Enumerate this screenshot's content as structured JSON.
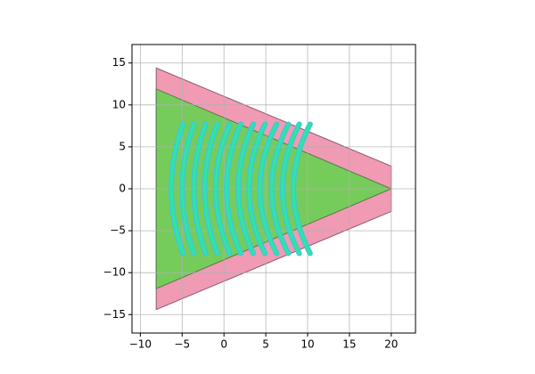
{
  "chart_data": {
    "type": "shapes",
    "xlim": [
      -11,
      22.9
    ],
    "ylim": [
      -17.2,
      17.2
    ],
    "xticks": [
      {
        "value": -10,
        "label": "−10"
      },
      {
        "value": -5,
        "label": "−5"
      },
      0,
      5,
      10,
      15,
      20
    ],
    "yticks": [
      {
        "value": -15,
        "label": "−15"
      },
      {
        "value": -10,
        "label": "−10"
      },
      {
        "value": -5,
        "label": "−5"
      },
      0,
      5,
      10,
      15
    ],
    "grid": true,
    "polygons": [
      {
        "color": "#f09ab3",
        "edgecolor": "#8e5b70",
        "x": [
          -8.1,
          20,
          20,
          -8.1
        ],
        "y": [
          14.4,
          2.7,
          -2.7,
          -14.4
        ]
      },
      {
        "color": "#76cc5a",
        "edgecolor": "#5a7a4a",
        "x": [
          -8.1,
          20,
          -8.1
        ],
        "y": [
          11.9,
          0,
          -11.9
        ]
      }
    ],
    "arcs": {
      "edgecolor": "#3fc8d8",
      "color": "#2ee6a0",
      "half_height": 7.7,
      "vertex_x": [
        -6.3,
        -5.0,
        -3.6,
        -2.3,
        -1.0,
        0.3,
        1.7,
        3.0,
        4.3,
        5.7,
        7.0,
        8.3
      ],
      "tip_x": [
        -4.9,
        -3.6,
        -2.2,
        -0.8,
        0.7,
        2.0,
        3.5,
        4.9,
        6.3,
        7.7,
        9.0,
        10.3
      ]
    }
  }
}
